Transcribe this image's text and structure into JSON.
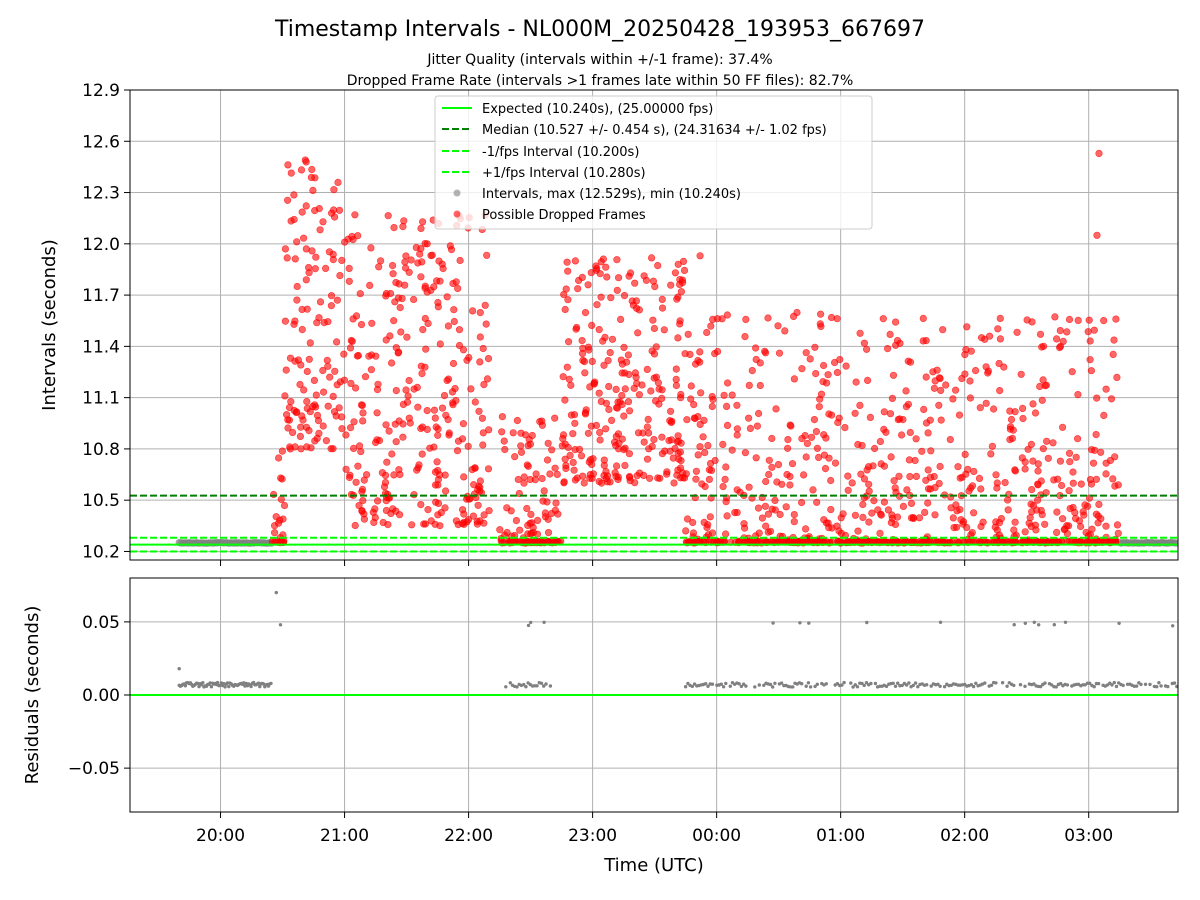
{
  "figure": {
    "title": "Timestamp Intervals - NL000M_20250428_193953_667697",
    "subtitle_1": "Jitter Quality (intervals within +/-1 frame): 37.4%",
    "subtitle_2": "Dropped Frame Rate (intervals >1 frames late within 50 FF files): 82.7%",
    "xlabel": "Time (UTC)"
  },
  "colors": {
    "expected": "#00ff00",
    "median": "#008000",
    "interval_bounds": "#00ff00",
    "intervals": "#808080",
    "dropped": "#ff0000",
    "grid": "#b0b0b0"
  },
  "chart_data": [
    {
      "type": "scatter",
      "title": "",
      "ylabel": "Intervals (seconds)",
      "xlabel": "",
      "x_tick_labels": [
        "20:00",
        "21:00",
        "22:00",
        "23:00",
        "00:00",
        "01:00",
        "02:00",
        "03:00"
      ],
      "y_tick_labels": [
        "10.2",
        "10.5",
        "10.8",
        "11.1",
        "11.4",
        "11.7",
        "12.0",
        "12.3",
        "12.6",
        "12.9"
      ],
      "xlim_hours_utc": [
        19.27,
        27.72
      ],
      "ylim": [
        10.15,
        12.9
      ],
      "grid": true,
      "legend_placement": "upper-center",
      "legend": [
        "Expected (10.240s), (25.00000 fps)",
        "Median (10.527 +/- 0.454 s), (24.31634 +/- 1.02 fps)",
        "-1/fps Interval (10.200s)",
        "+1/fps Interval (10.280s)",
        "Intervals, max (12.529s), min (10.240s)",
        "Possible Dropped Frames"
      ],
      "reference_lines": {
        "expected": 10.24,
        "median": 10.527,
        "minus_1_fps": 10.2,
        "plus_1_fps": 10.28
      },
      "stats": {
        "max_interval": 12.529,
        "min_interval": 10.24
      },
      "regular_intervals_segments": [
        {
          "x_start": "19:40",
          "x_end": "20:25",
          "y": 10.25
        },
        {
          "x_start": "03:15",
          "x_end": "03:43",
          "y": 10.25
        }
      ],
      "dropped_frame_clusters": [
        {
          "x_range": [
            "20:25",
            "20:31"
          ],
          "y_range": [
            10.25,
            10.8
          ]
        },
        {
          "x_range": [
            "20:31",
            "21:00"
          ],
          "y_range": [
            10.8,
            12.49
          ]
        },
        {
          "x_range": [
            "21:00",
            "22:10"
          ],
          "y_range": [
            10.35,
            12.17
          ]
        },
        {
          "x_range": [
            "22:15",
            "22:45"
          ],
          "y_range": [
            10.25,
            11.0
          ]
        },
        {
          "x_range": [
            "22:45",
            "23:45"
          ],
          "y_range": [
            10.6,
            11.93
          ]
        },
        {
          "x_range": [
            "23:45",
            "03:15"
          ],
          "y_range": [
            10.25,
            11.6
          ]
        }
      ],
      "notable_points": [
        {
          "x": "20:41",
          "y": 12.49
        },
        {
          "x": "21:05",
          "y": 12.17
        },
        {
          "x": "21:37",
          "y": 12.09
        },
        {
          "x": "23:52",
          "y": 11.93
        },
        {
          "x": "03:05",
          "y": 12.529
        },
        {
          "x": "03:04",
          "y": 12.05
        }
      ]
    },
    {
      "type": "scatter",
      "title": "",
      "ylabel": "Residuals (seconds)",
      "xlabel": "Time (UTC)",
      "x_tick_labels": [
        "20:00",
        "21:00",
        "22:00",
        "23:00",
        "00:00",
        "01:00",
        "02:00",
        "03:00"
      ],
      "y_tick_labels": [
        "0.05",
        "0.00",
        "−0.05"
      ],
      "xlim_hours_utc": [
        19.27,
        27.72
      ],
      "ylim": [
        -0.08,
        0.08
      ],
      "grid": true,
      "zero_line": 0.0,
      "residual_bands": [
        {
          "x_range": [
            "19:40",
            "20:25"
          ],
          "y": 0.007
        },
        {
          "x_range": [
            "22:18",
            "22:40"
          ],
          "y": 0.007
        },
        {
          "x_range": [
            "23:45",
            "03:43"
          ],
          "y": 0.007
        }
      ],
      "notable_points": [
        {
          "x": "19:40",
          "y": 0.018
        },
        {
          "x": "20:27",
          "y": 0.07
        },
        {
          "x": "20:29",
          "y": 0.048
        }
      ]
    }
  ]
}
